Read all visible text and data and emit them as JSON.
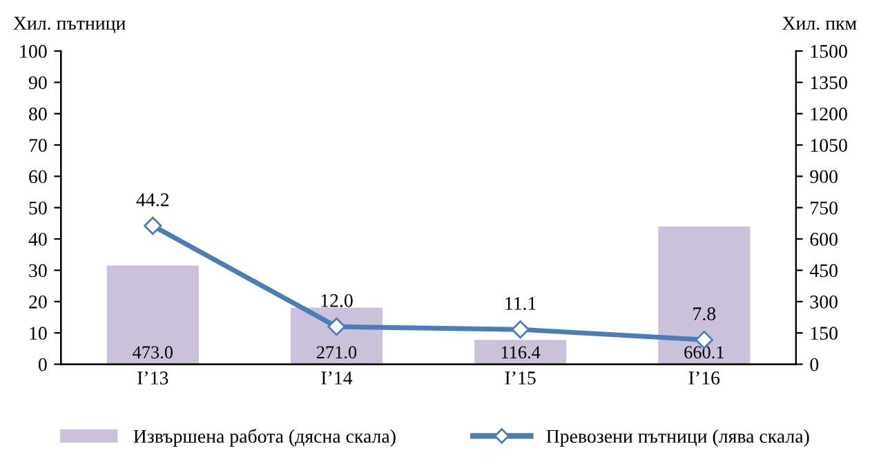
{
  "chart_data": {
    "type": "bar",
    "categories": [
      "I’13",
      "I’14",
      "I’15",
      "I’16"
    ],
    "ylabel": "Хил. пътници",
    "y2label": "Хил. пкм",
    "series": [
      {
        "name": "Извършена работа (дясна скала)",
        "axis": "y2",
        "color": "#ccc1da",
        "values": [
          473.0,
          271.0,
          116.4,
          660.1
        ],
        "value_labels": [
          "473.0",
          "271.0",
          "116.4",
          "660.1"
        ]
      },
      {
        "name": "Превозени пътници (лява скала)",
        "type": "line",
        "axis": "y",
        "color": "#4a7ebb",
        "values": [
          44.2,
          12.0,
          11.1,
          7.8
        ],
        "value_labels": [
          "44.2",
          "12.0",
          "11.1",
          "7.8"
        ]
      }
    ],
    "ylim": [
      0,
      100
    ],
    "yticks": [
      0,
      10,
      20,
      30,
      40,
      50,
      60,
      70,
      80,
      90,
      100
    ],
    "y2lim": [
      0,
      1500
    ],
    "y2ticks": [
      0,
      150,
      300,
      450,
      600,
      750,
      900,
      1050,
      1200,
      1350,
      1500
    ],
    "legend": "bottom",
    "marker": "diamond",
    "line_style": "solid",
    "grid": false
  }
}
